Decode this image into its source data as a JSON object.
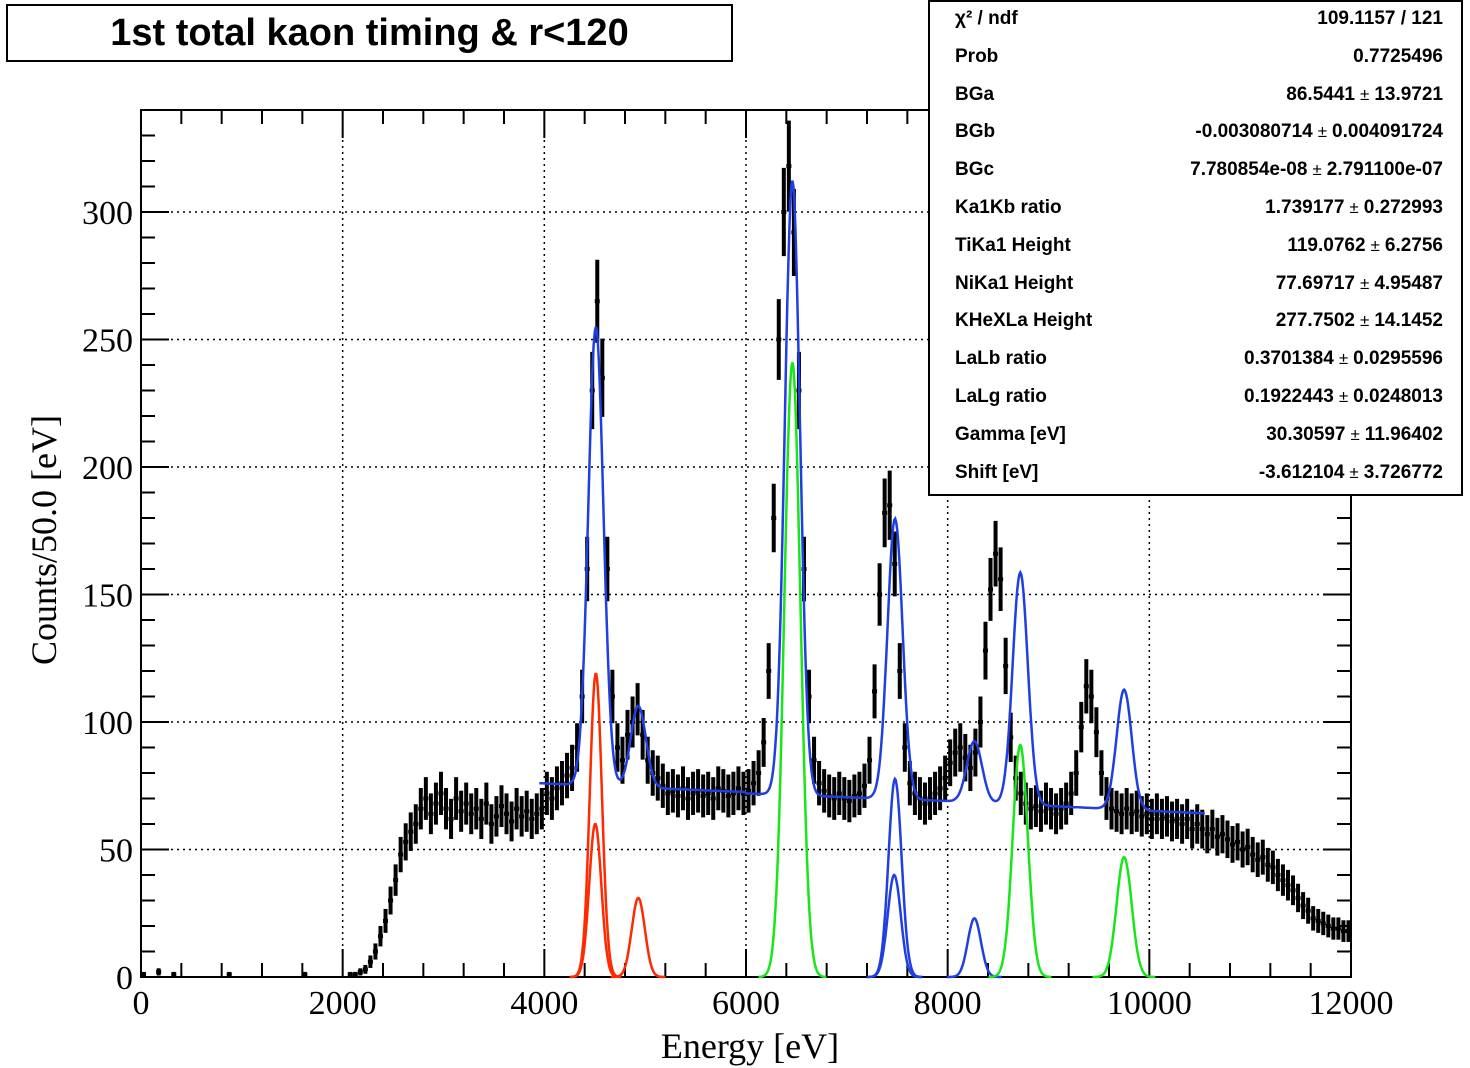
{
  "title": "1st total kaon timing & r<120",
  "stats": {
    "rows": [
      {
        "label": "χ² / ndf",
        "value": "109.1157 / 121",
        "error": ""
      },
      {
        "label": "Prob",
        "value": "0.7725496",
        "error": ""
      },
      {
        "label": "BGa",
        "value": "86.5441",
        "error": "13.9721"
      },
      {
        "label": "BGb",
        "value": "-0.003080714",
        "error": "0.004091724"
      },
      {
        "label": "BGc",
        "value": "7.780854e-08",
        "error": "2.791100e-07"
      },
      {
        "label": "Ka1Kb ratio",
        "value": "1.739177",
        "error": "0.272993"
      },
      {
        "label": "TiKa1 Height",
        "value": "119.0762",
        "error": "6.2756"
      },
      {
        "label": "NiKa1 Height",
        "value": "77.69717",
        "error": "4.95487"
      },
      {
        "label": "KHeXLa Height",
        "value": "277.7502",
        "error": "14.1452"
      },
      {
        "label": "LaLb ratio",
        "value": "0.3701384",
        "error": "0.0295596"
      },
      {
        "label": "LaLg ratio",
        "value": "0.1922443",
        "error": "0.0248013"
      },
      {
        "label": "Gamma [eV]",
        "value": "30.30597",
        "error": "11.96402"
      },
      {
        "label": "Shift [eV]",
        "value": "-3.612104",
        "error": "3.726772"
      }
    ]
  },
  "chart_data": {
    "type": "line",
    "title": "1st total kaon timing & r<120",
    "xlabel": "Energy [eV]",
    "ylabel": "Counts/50.0 [eV]",
    "xlim": [
      0,
      12000
    ],
    "ylim": [
      0,
      340
    ],
    "x_ticks": [
      0,
      2000,
      4000,
      6000,
      8000,
      10000,
      12000
    ],
    "y_ticks": [
      0,
      50,
      100,
      150,
      200,
      250,
      300
    ],
    "grid": true,
    "colors": {
      "data": "#000000",
      "fit": "#1f3fe0",
      "ti": "#ff2a00",
      "green": "#19e619",
      "blue": "#1f3fe0"
    },
    "histogram": {
      "bin_width": 50,
      "points": [
        [
          25,
          1
        ],
        [
          175,
          2
        ],
        [
          325,
          1
        ],
        [
          875,
          1
        ],
        [
          1625,
          1
        ],
        [
          2025,
          0
        ],
        [
          2075,
          1
        ],
        [
          2125,
          1
        ],
        [
          2175,
          2
        ],
        [
          2225,
          3
        ],
        [
          2275,
          6
        ],
        [
          2325,
          10
        ],
        [
          2375,
          16
        ],
        [
          2425,
          22
        ],
        [
          2475,
          30
        ],
        [
          2525,
          38
        ],
        [
          2575,
          48
        ],
        [
          2625,
          53
        ],
        [
          2675,
          57
        ],
        [
          2725,
          60
        ],
        [
          2775,
          66
        ],
        [
          2825,
          70
        ],
        [
          2875,
          64
        ],
        [
          2925,
          68
        ],
        [
          2975,
          72
        ],
        [
          3025,
          66
        ],
        [
          3075,
          62
        ],
        [
          3125,
          70
        ],
        [
          3175,
          65
        ],
        [
          3225,
          68
        ],
        [
          3275,
          64
        ],
        [
          3325,
          66
        ],
        [
          3375,
          62
        ],
        [
          3425,
          68
        ],
        [
          3475,
          60
        ],
        [
          3525,
          63
        ],
        [
          3575,
          67
        ],
        [
          3625,
          64
        ],
        [
          3675,
          61
        ],
        [
          3725,
          66
        ],
        [
          3775,
          63
        ],
        [
          3825,
          65
        ],
        [
          3875,
          62
        ],
        [
          3925,
          64
        ],
        [
          3975,
          66
        ],
        [
          4025,
          72
        ],
        [
          4075,
          70
        ],
        [
          4125,
          74
        ],
        [
          4175,
          76
        ],
        [
          4225,
          79
        ],
        [
          4275,
          82
        ],
        [
          4325,
          90
        ],
        [
          4375,
          110
        ],
        [
          4425,
          160
        ],
        [
          4475,
          230
        ],
        [
          4525,
          265
        ],
        [
          4575,
          235
        ],
        [
          4625,
          160
        ],
        [
          4675,
          110
        ],
        [
          4725,
          90
        ],
        [
          4775,
          85
        ],
        [
          4825,
          95
        ],
        [
          4875,
          100
        ],
        [
          4925,
          105
        ],
        [
          4975,
          95
        ],
        [
          5025,
          85
        ],
        [
          5075,
          80
        ],
        [
          5125,
          78
        ],
        [
          5175,
          75
        ],
        [
          5225,
          72
        ],
        [
          5275,
          73
        ],
        [
          5325,
          71
        ],
        [
          5375,
          74
        ],
        [
          5425,
          70
        ],
        [
          5475,
          72
        ],
        [
          5525,
          73
        ],
        [
          5575,
          71
        ],
        [
          5625,
          72
        ],
        [
          5675,
          70
        ],
        [
          5725,
          74
        ],
        [
          5775,
          73
        ],
        [
          5825,
          71
        ],
        [
          5875,
          72
        ],
        [
          5925,
          74
        ],
        [
          5975,
          72
        ],
        [
          6025,
          73
        ],
        [
          6075,
          76
        ],
        [
          6125,
          80
        ],
        [
          6175,
          92
        ],
        [
          6225,
          120
        ],
        [
          6275,
          180
        ],
        [
          6325,
          250
        ],
        [
          6375,
          300
        ],
        [
          6425,
          318
        ],
        [
          6475,
          292
        ],
        [
          6525,
          230
        ],
        [
          6575,
          160
        ],
        [
          6625,
          110
        ],
        [
          6675,
          85
        ],
        [
          6725,
          76
        ],
        [
          6775,
          73
        ],
        [
          6825,
          71
        ],
        [
          6875,
          70
        ],
        [
          6925,
          72
        ],
        [
          6975,
          70
        ],
        [
          7025,
          69
        ],
        [
          7075,
          71
        ],
        [
          7125,
          72
        ],
        [
          7175,
          75
        ],
        [
          7225,
          85
        ],
        [
          7275,
          112
        ],
        [
          7325,
          150
        ],
        [
          7375,
          182
        ],
        [
          7425,
          185
        ],
        [
          7475,
          162
        ],
        [
          7525,
          120
        ],
        [
          7575,
          90
        ],
        [
          7625,
          76
        ],
        [
          7675,
          72
        ],
        [
          7725,
          70
        ],
        [
          7775,
          68
        ],
        [
          7825,
          70
        ],
        [
          7875,
          72
        ],
        [
          7925,
          74
        ],
        [
          7975,
          78
        ],
        [
          8025,
          84
        ],
        [
          8075,
          88
        ],
        [
          8125,
          90
        ],
        [
          8175,
          86
        ],
        [
          8225,
          82
        ],
        [
          8275,
          88
        ],
        [
          8325,
          100
        ],
        [
          8375,
          128
        ],
        [
          8425,
          152
        ],
        [
          8475,
          166
        ],
        [
          8525,
          156
        ],
        [
          8575,
          122
        ],
        [
          8625,
          94
        ],
        [
          8675,
          78
        ],
        [
          8725,
          72
        ],
        [
          8775,
          68
        ],
        [
          8825,
          66
        ],
        [
          8875,
          67
        ],
        [
          8925,
          65
        ],
        [
          8975,
          68
        ],
        [
          9025,
          66
        ],
        [
          9075,
          64
        ],
        [
          9125,
          66
        ],
        [
          9175,
          68
        ],
        [
          9225,
          72
        ],
        [
          9275,
          80
        ],
        [
          9325,
          98
        ],
        [
          9375,
          114
        ],
        [
          9425,
          110
        ],
        [
          9475,
          96
        ],
        [
          9525,
          80
        ],
        [
          9575,
          70
        ],
        [
          9625,
          66
        ],
        [
          9675,
          65
        ],
        [
          9725,
          64
        ],
        [
          9775,
          66
        ],
        [
          9825,
          64
        ],
        [
          9875,
          65
        ],
        [
          9925,
          63
        ],
        [
          9975,
          64
        ],
        [
          10025,
          62
        ],
        [
          10075,
          64
        ],
        [
          10125,
          62
        ],
        [
          10175,
          63
        ],
        [
          10225,
          61
        ],
        [
          10275,
          62
        ],
        [
          10325,
          60
        ],
        [
          10375,
          62
        ],
        [
          10425,
          58
        ],
        [
          10475,
          60
        ],
        [
          10525,
          58
        ],
        [
          10575,
          56
        ],
        [
          10625,
          58
        ],
        [
          10675,
          55
        ],
        [
          10725,
          56
        ],
        [
          10775,
          54
        ],
        [
          10825,
          52
        ],
        [
          10875,
          53
        ],
        [
          10925,
          50
        ],
        [
          10975,
          51
        ],
        [
          11025,
          48
        ],
        [
          11075,
          46
        ],
        [
          11125,
          47
        ],
        [
          11175,
          44
        ],
        [
          11225,
          43
        ],
        [
          11275,
          40
        ],
        [
          11325,
          38
        ],
        [
          11375,
          36
        ],
        [
          11425,
          34
        ],
        [
          11475,
          31
        ],
        [
          11525,
          28
        ],
        [
          11575,
          26
        ],
        [
          11625,
          23
        ],
        [
          11675,
          22
        ],
        [
          11725,
          21
        ],
        [
          11775,
          20
        ],
        [
          11825,
          19
        ],
        [
          11875,
          19
        ],
        [
          11925,
          18
        ],
        [
          11975,
          18
        ]
      ]
    },
    "fit": {
      "x_range": [
        3950,
        10550
      ],
      "background": {
        "a": 86.5441,
        "b": -0.003080714,
        "c": 7.780854e-08
      },
      "gamma": 30.30597,
      "shift": -3.612104,
      "peaks": [
        {
          "center": 4511,
          "height": 119.0762,
          "sigma": 60,
          "color": "ti"
        },
        {
          "center": 4505,
          "height": 60,
          "sigma": 60,
          "color": "ti"
        },
        {
          "center": 4932,
          "height": 31,
          "sigma": 65,
          "color": "ti"
        },
        {
          "center": 6460,
          "height": 241,
          "sigma": 80,
          "color": "green"
        },
        {
          "center": 7478,
          "height": 77.69717,
          "sigma": 65,
          "color": "blue"
        },
        {
          "center": 7470,
          "height": 40,
          "sigma": 65,
          "color": "blue"
        },
        {
          "center": 8265,
          "height": 23,
          "sigma": 65,
          "color": "blue"
        },
        {
          "center": 8720,
          "height": 91,
          "sigma": 75,
          "color": "green"
        },
        {
          "center": 9750,
          "height": 47,
          "sigma": 75,
          "color": "green"
        }
      ],
      "total_peaks": [
        {
          "center": 4511,
          "height": 180
        },
        {
          "center": 4932,
          "height": 32
        },
        {
          "center": 6460,
          "height": 241
        },
        {
          "center": 7478,
          "height": 110
        },
        {
          "center": 8265,
          "height": 24
        },
        {
          "center": 8720,
          "height": 91
        },
        {
          "center": 9750,
          "height": 47
        }
      ]
    }
  }
}
